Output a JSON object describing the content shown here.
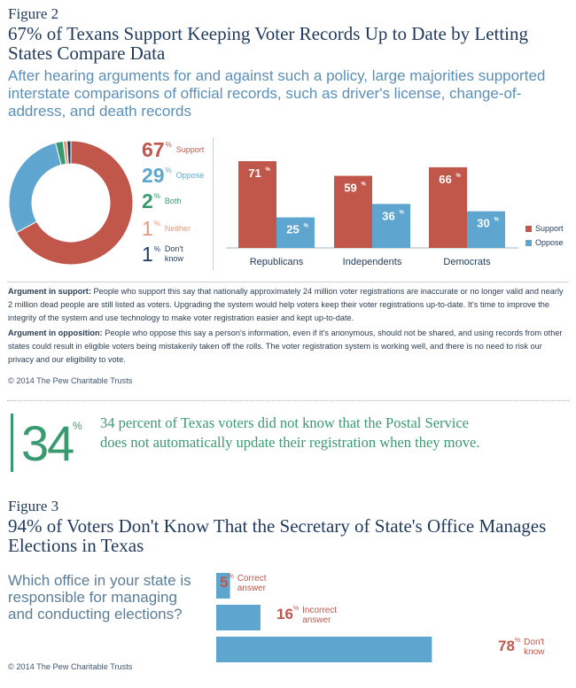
{
  "figure2": {
    "label": "Figure 2",
    "title": "67% of Texans Support Keeping Voter Records Up to Date by Letting States Compare Data",
    "subtitle": "After hearing arguments for and against such a policy, large majorities supported interstate comparisons of official records, such as driver's license, change-of-address, and death records"
  },
  "colors": {
    "support": "#c0574a",
    "oppose": "#5ea6cf",
    "both": "#3a9a6f",
    "neither": "#e29a7e",
    "dont_know": "#1f3a5c",
    "callout": "#3a9a6f"
  },
  "chart_data": [
    {
      "type": "pie",
      "slices": [
        {
          "name": "Support",
          "value": 67,
          "num": "67",
          "color": "#c0574a"
        },
        {
          "name": "Oppose",
          "value": 29,
          "num": "29",
          "color": "#5ea6cf"
        },
        {
          "name": "Both",
          "value": 2,
          "num": "2",
          "color": "#3a9a6f"
        },
        {
          "name": "Neither",
          "value": 1,
          "num": "1",
          "color": "#e29a7e"
        },
        {
          "name": "Don't know",
          "value": 1,
          "num": "1",
          "color": "#1f3a5c"
        }
      ],
      "percent_sign": "%"
    },
    {
      "type": "bar",
      "categories": [
        "Republicans",
        "Independents",
        "Democrats"
      ],
      "series": [
        {
          "name": "Support",
          "values": [
            71,
            59,
            66
          ],
          "labels": [
            "71",
            "59",
            "66"
          ],
          "color": "#c0574a"
        },
        {
          "name": "Oppose",
          "values": [
            25,
            36,
            30
          ],
          "labels": [
            "25",
            "36",
            "30"
          ],
          "color": "#5ea6cf"
        }
      ],
      "percent_sign": "%",
      "ylim": [
        0,
        80
      ]
    },
    {
      "type": "bar",
      "orientation": "horizontal",
      "categories": [
        "Correct answer",
        "Incorrect answer",
        "Don't know"
      ],
      "values": [
        5,
        16,
        78
      ],
      "labels": [
        "5",
        "16",
        "78"
      ],
      "percent_sign": "%",
      "xlim": [
        0,
        100
      ],
      "color": "#5ea6cf"
    }
  ],
  "legend_pie": {
    "support_label": "Support",
    "oppose_label": "Oppose",
    "both_label": "Both",
    "neither_label": "Neither",
    "dontknow_label_1": "Don't",
    "dontknow_label_2": "know"
  },
  "legend_bar": {
    "support_label": "Support",
    "oppose_label": "Oppose"
  },
  "arguments": {
    "support_lead": "Argument in support:",
    "support_text": " People who support this say that nationally approximately 24 million voter registrations are inaccurate or no longer valid and nearly 2 million dead people are still listed as voters. Upgrading the system would help voters keep their voter registrations up-to-date. It's time to improve the integrity of the system and use technology to make voter registration easier and kept up-to-date.",
    "oppose_lead": "Argument in opposition:",
    "oppose_text": " People who oppose this say a person's information, even if it's anonymous, should not be shared, and using records from other states could result in eligible voters being mistakenly taken off the rolls. The voter registration system is working well, and there is no need to risk our privacy and our eligibility to vote."
  },
  "copyright1": "© 2014 The Pew Charitable Trusts",
  "callout": {
    "number": "34",
    "percent_sign": "%",
    "text": "34 percent of Texas voters did not know that the Postal Service does not automatically update their registration when they move."
  },
  "figure3": {
    "label": "Figure 3",
    "title": "94% of Voters Don't Know That the Secretary of State's Office Manages Elections in Texas",
    "question": "Which office in your state is responsible for managing and conducting elections?",
    "bar_labels": [
      [
        "Correct",
        "answer"
      ],
      [
        "Incorrect",
        "answer"
      ],
      [
        "Don't",
        "know"
      ]
    ]
  },
  "copyright2": "© 2014 The Pew Charitable Trusts"
}
